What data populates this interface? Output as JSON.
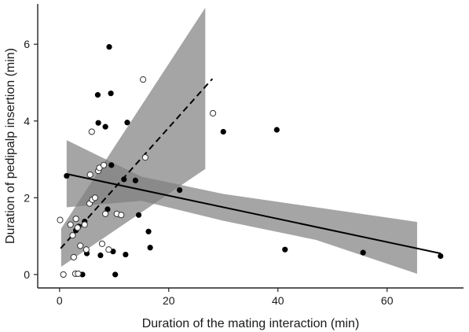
{
  "chart_data": {
    "type": "scatter",
    "title": "",
    "xlabel": "Duration of the mating interaction (min)",
    "ylabel": "Duration of pedipalp insertion (min)",
    "xlim": [
      -4,
      74
    ],
    "ylim": [
      -0.35,
      7.05
    ],
    "xticks": [
      0,
      20,
      40,
      60
    ],
    "yticks": [
      0,
      2,
      4,
      6
    ],
    "grid": false,
    "legend": "none",
    "colors": {
      "filled": "#000000",
      "open_stroke": "#333333",
      "band": "#7f7f7f",
      "line": "#000000"
    },
    "series": [
      {
        "marker": "filled",
        "points": [
          [
            1.3,
            2.57
          ],
          [
            3.0,
            1.15
          ],
          [
            3.5,
            1.25
          ],
          [
            4.2,
            0.0
          ],
          [
            4.6,
            1.38
          ],
          [
            5.0,
            0.55
          ],
          [
            7.0,
            4.68
          ],
          [
            7.1,
            3.95
          ],
          [
            7.5,
            0.5
          ],
          [
            8.4,
            3.85
          ],
          [
            8.8,
            1.7
          ],
          [
            9.1,
            5.93
          ],
          [
            9.4,
            4.72
          ],
          [
            9.5,
            2.85
          ],
          [
            9.8,
            0.6
          ],
          [
            10.2,
            0.0
          ],
          [
            11.8,
            2.48
          ],
          [
            12.1,
            0.52
          ],
          [
            12.4,
            3.96
          ],
          [
            13.9,
            2.45
          ],
          [
            14.5,
            1.55
          ],
          [
            16.3,
            1.12
          ],
          [
            16.6,
            0.7
          ],
          [
            22.0,
            2.2
          ],
          [
            30.0,
            3.72
          ],
          [
            39.8,
            3.77
          ],
          [
            41.3,
            0.65
          ],
          [
            55.6,
            0.57
          ],
          [
            69.8,
            0.48
          ]
        ]
      },
      {
        "marker": "open",
        "points": [
          [
            0.1,
            1.42
          ],
          [
            0.7,
            0.0
          ],
          [
            2.0,
            1.3
          ],
          [
            2.4,
            1.02
          ],
          [
            2.6,
            0.45
          ],
          [
            2.9,
            0.02
          ],
          [
            3.0,
            1.45
          ],
          [
            3.3,
            1.22
          ],
          [
            3.4,
            0.02
          ],
          [
            3.8,
            0.75
          ],
          [
            4.6,
            1.3
          ],
          [
            4.9,
            0.65
          ],
          [
            5.5,
            1.85
          ],
          [
            5.6,
            2.6
          ],
          [
            5.9,
            3.72
          ],
          [
            6.0,
            1.95
          ],
          [
            6.5,
            2.0
          ],
          [
            7.1,
            2.7
          ],
          [
            7.3,
            2.78
          ],
          [
            7.8,
            0.8
          ],
          [
            8.1,
            2.85
          ],
          [
            8.4,
            1.58
          ],
          [
            9.0,
            0.65
          ],
          [
            10.5,
            1.58
          ],
          [
            11.3,
            1.55
          ],
          [
            15.3,
            5.08
          ],
          [
            15.7,
            3.05
          ],
          [
            28.1,
            4.2
          ]
        ]
      }
    ],
    "fits": [
      {
        "style": "dashed",
        "x": [
          0.2,
          28.0
        ],
        "y": [
          0.68,
          5.1
        ],
        "band": {
          "x": [
            0.3,
            26.7
          ],
          "upper": [
            1.2,
            6.95
          ],
          "lower": [
            0.2,
            2.75
          ]
        }
      },
      {
        "style": "solid",
        "x": [
          1.3,
          69.8
        ],
        "y": [
          2.62,
          0.55
        ],
        "band": {
          "x": [
            1.3,
            15.0,
            30.0,
            47.0,
            65.5
          ],
          "upper": [
            3.5,
            2.55,
            2.1,
            1.75,
            1.37
          ],
          "lower": [
            1.75,
            1.92,
            1.4,
            0.9,
            0.02
          ]
        }
      }
    ]
  }
}
